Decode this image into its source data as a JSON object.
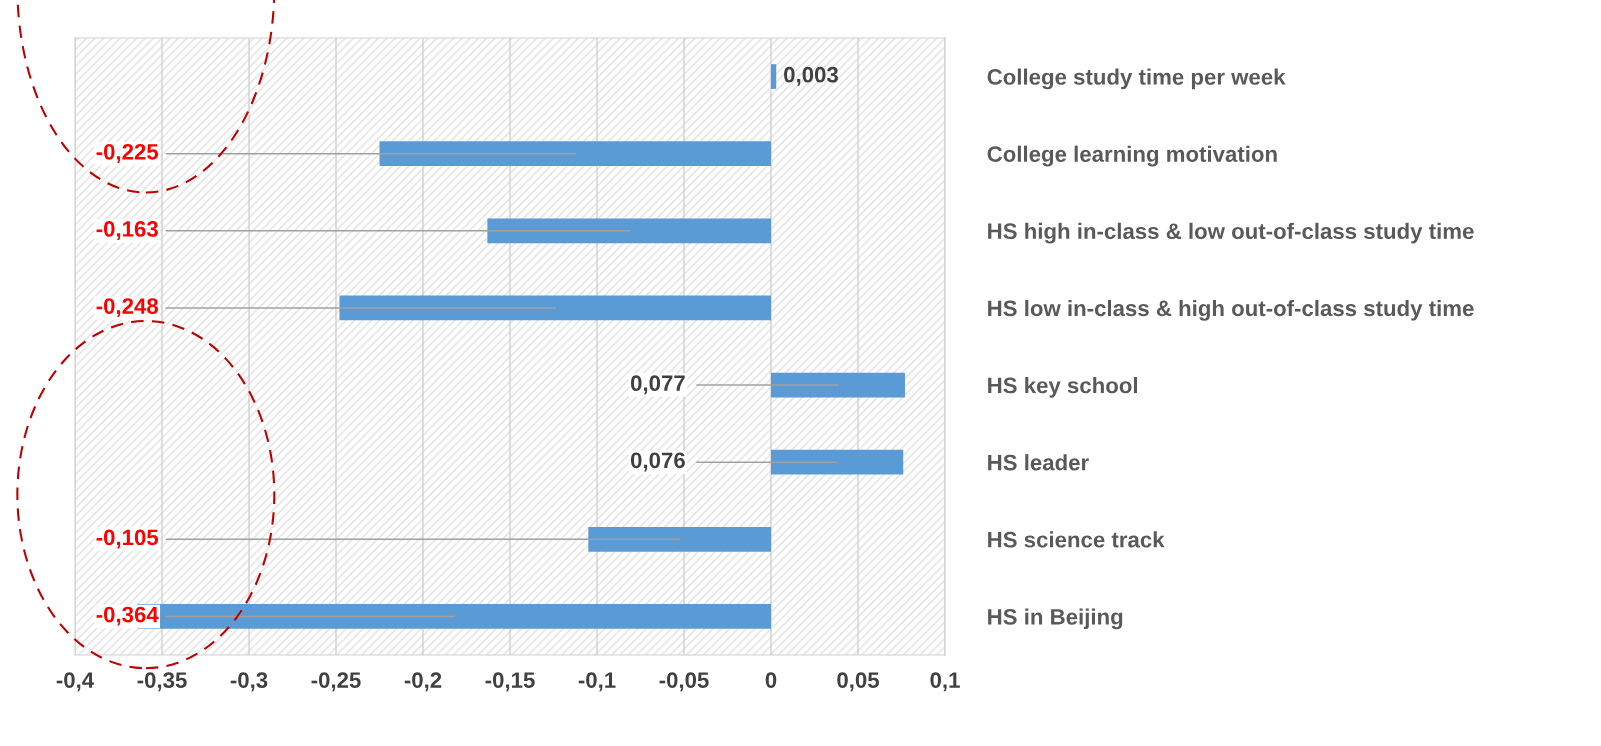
{
  "chart_data": {
    "type": "bar",
    "orientation": "horizontal",
    "categories": [
      "College study time per week",
      "College learning motivation",
      "HS high in-class & low out-of-class study time",
      "HS low in-class & high out-of-class study time",
      "HS key school",
      "HS leader",
      "HS science track",
      "HS in Beijing"
    ],
    "values": [
      0.003,
      -0.225,
      -0.163,
      -0.248,
      0.077,
      0.076,
      -0.105,
      -0.364
    ],
    "value_labels": [
      "0,003",
      "-0,225",
      "-0,163",
      "-0,248",
      "0,077",
      "0,076",
      "-0,105",
      "-0,364"
    ],
    "color": "#5b9bd5",
    "xlim": [
      -0.4,
      0.1
    ],
    "xticks": [
      {
        "value": -0.4,
        "label": "-0,4"
      },
      {
        "value": -0.35,
        "label": "-0,35"
      },
      {
        "value": -0.3,
        "label": "-0,3"
      },
      {
        "value": -0.25,
        "label": "-0,25"
      },
      {
        "value": -0.2,
        "label": "-0,2"
      },
      {
        "value": -0.15,
        "label": "-0,15"
      },
      {
        "value": -0.1,
        "label": "-0,1"
      },
      {
        "value": -0.05,
        "label": "-0,05"
      },
      0,
      {
        "value": 0.05,
        "label": "0,05"
      },
      {
        "value": 0.1,
        "label": "0,1"
      }
    ],
    "grid": "x"
  }
}
